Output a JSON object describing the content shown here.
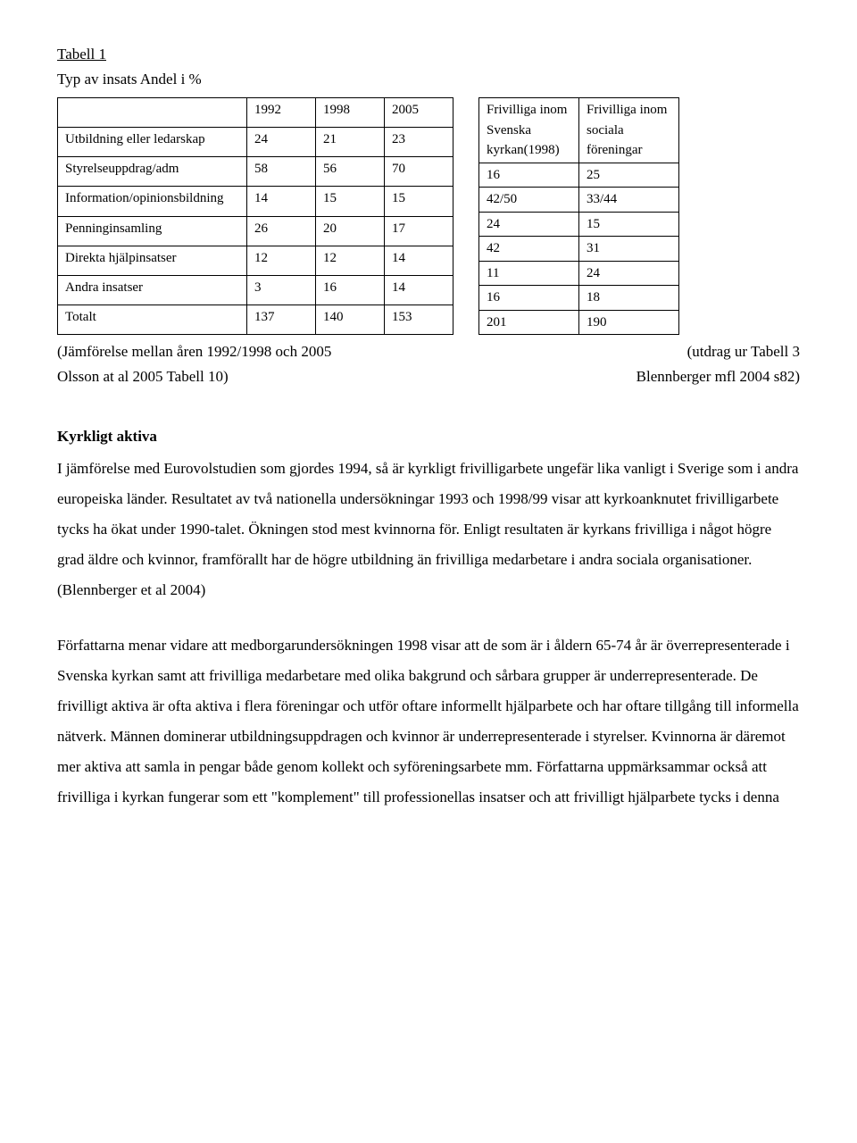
{
  "header": {
    "label": "Tabell 1",
    "title": "Typ av insats  Andel i %"
  },
  "table1": {
    "headers": [
      "",
      "1992",
      "1998",
      "2005"
    ],
    "rows": [
      [
        "Utbildning eller ledarskap",
        "24",
        "21",
        "23"
      ],
      [
        "Styrelseuppdrag/adm",
        "58",
        "56",
        "70"
      ],
      [
        "Information/opinionsbildning",
        "14",
        "15",
        "15"
      ],
      [
        "Penninginsamling",
        "26",
        "20",
        "17"
      ],
      [
        "Direkta hjälpinsatser",
        "12",
        "12",
        "14"
      ],
      [
        "Andra insatser",
        "3",
        "16",
        "14"
      ],
      [
        "Totalt",
        "137",
        "140",
        "153"
      ]
    ]
  },
  "table2": {
    "headers": [
      "Frivilliga inom Svenska kyrkan(1998)",
      "Frivilliga inom sociala föreningar"
    ],
    "rows": [
      [
        "16",
        "25"
      ],
      [
        "42/50",
        "33/44"
      ],
      [
        "24",
        "15"
      ],
      [
        "42",
        "31"
      ],
      [
        "11",
        "24"
      ],
      [
        "16",
        "18"
      ],
      [
        "201",
        "190"
      ]
    ]
  },
  "notes": {
    "left1": "(Jämförelse mellan åren 1992/1998 och 2005",
    "right1": "(utdrag ur Tabell 3",
    "left2": "Olsson at al 2005 Tabell 10)",
    "right2": "Blennberger mfl 2004 s82)"
  },
  "section_heading": "Kyrkligt aktiva",
  "para1": "I jämförelse med Eurovolstudien som gjordes 1994, så är kyrkligt frivilligarbete ungefär lika vanligt i Sverige som i andra europeiska länder. Resultatet av två nationella undersökningar 1993 och 1998/99 visar att kyrkoanknutet frivilligarbete tycks ha ökat under 1990-talet. Ökningen stod mest kvinnorna för. Enligt resultaten är kyrkans frivilliga i något högre grad äldre och kvinnor, framförallt har de högre utbildning än frivilliga medarbetare i andra sociala organisationer. (Blennberger et al 2004)",
  "para2": "Författarna menar vidare att medborgarundersökningen 1998 visar att de som är i åldern 65-74 år är överrepresenterade i Svenska kyrkan samt att frivilliga medarbetare med olika bakgrund och sårbara grupper är underrepresenterade. De frivilligt aktiva är ofta aktiva i flera föreningar och utför oftare informellt hjälparbete och har oftare tillgång till informella nätverk. Männen dominerar utbildningsuppdragen och kvinnor är underrepresenterade i styrelser. Kvinnorna är däremot mer aktiva att samla in pengar både genom kollekt och syföreningsarbete mm. Författarna uppmärksammar också att frivilliga i kyrkan fungerar som ett \"komplement\" till professionellas insatser och att frivilligt hjälparbete tycks i denna"
}
